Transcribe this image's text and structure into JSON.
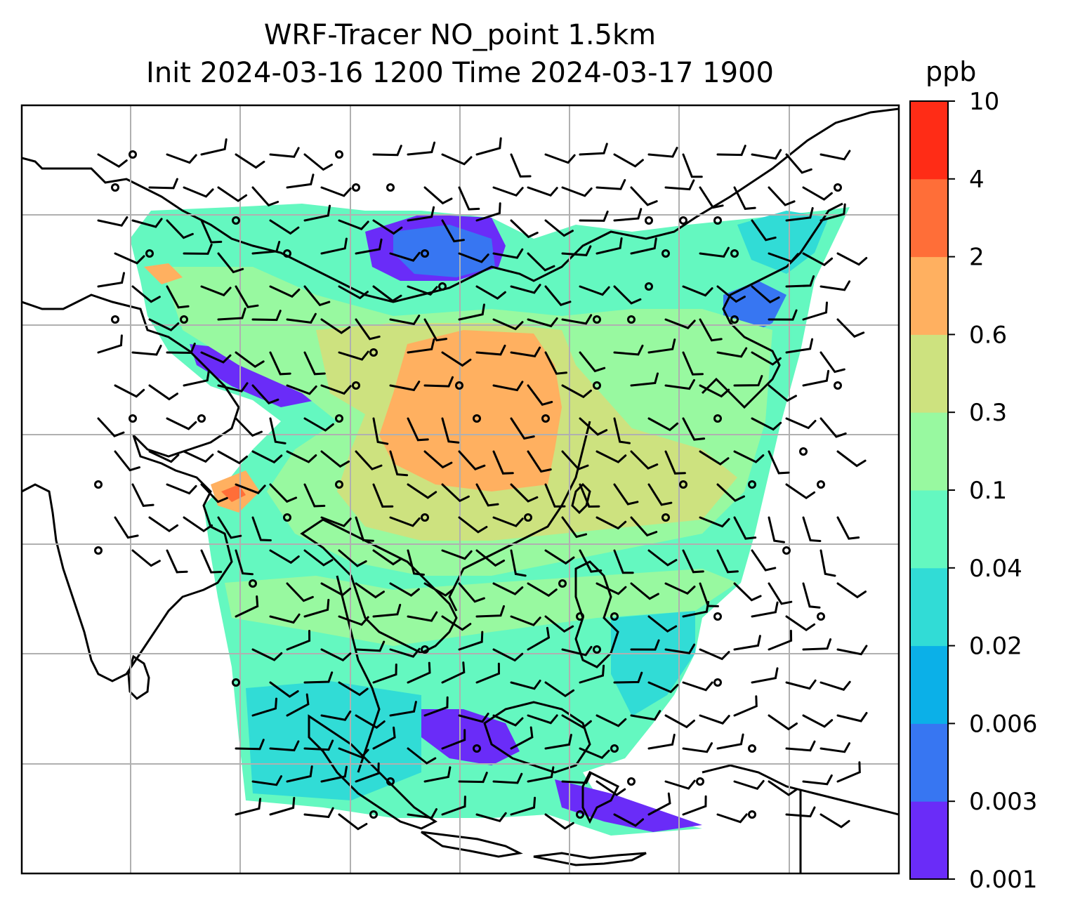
{
  "title": {
    "line1": "WRF-Tracer NO_point 1.5km",
    "line2": "Init 2024-03-16 1200 Time 2024-03-17 1900"
  },
  "colorbar": {
    "unit": "ppb",
    "levels": [
      "0.001",
      "0.003",
      "0.006",
      "0.02",
      "0.04",
      "0.1",
      "0.3",
      "0.6",
      "2",
      "4",
      "10"
    ],
    "colors": [
      "#6a2cf8",
      "#3776f2",
      "#0bb0e8",
      "#31dcd6",
      "#64f8c0",
      "#98f9a0",
      "#cde27f",
      "#ffb060",
      "#ff6e38",
      "#ff2c16"
    ]
  },
  "map": {
    "field_colors": {
      "very_low": "#6a2cf8",
      "low": "#3776f2",
      "mid_low": "#0bb0e8",
      "cyan": "#31dcd6",
      "mint": "#64f8c0",
      "green": "#98f9a0",
      "olive": "#cde27f",
      "orange": "#ffb060",
      "red_orange": "#ff6e38",
      "red": "#ff2c16"
    },
    "gridline_color": "#b0b0b0",
    "coastline_color": "#000000"
  }
}
